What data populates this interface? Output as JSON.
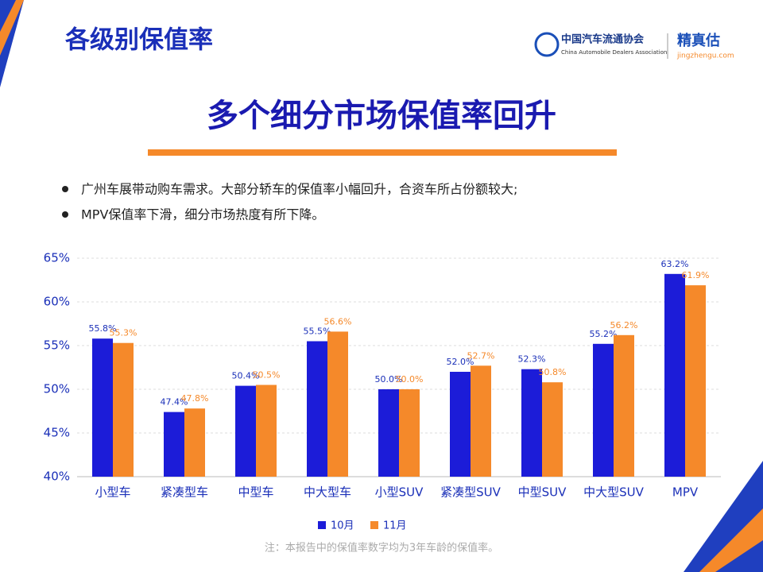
{
  "header": {
    "title": "各级别保值率",
    "logo_cn": "中国汽车流通协会",
    "logo_en": "China Automobile Dealers Association",
    "brand": "精真估",
    "brand_url": "jingzhengu.com"
  },
  "headline": "多个细分市场保值率回升",
  "bullets": [
    "广州车展带动购车需求。大部分轿车的保值率小幅回升，合资车所占份额较大;",
    "MPV保值率下滑，细分市场热度有所下降。"
  ],
  "footnote": "注：本报告中的保值率数字均为3年车龄的保值率。",
  "chart_data": {
    "type": "bar",
    "categories": [
      "小型车",
      "紧凑型车",
      "中型车",
      "中大型车",
      "小型SUV",
      "紧凑型SUV",
      "中型SUV",
      "中大型SUV",
      "MPV"
    ],
    "series": [
      {
        "name": "10月",
        "color": "#1c1cd8",
        "values": [
          55.8,
          47.4,
          50.4,
          55.5,
          50.0,
          52.0,
          52.3,
          55.2,
          63.2
        ],
        "value_labels": [
          "55.8%",
          "47.4%",
          "50.4%",
          "55.5%",
          "50.0%",
          "52.0%",
          "52.3%",
          "55.2%",
          "63.2%"
        ]
      },
      {
        "name": "11月",
        "color": "#f5892a",
        "values": [
          55.3,
          47.8,
          50.5,
          56.6,
          50.0,
          52.7,
          50.8,
          56.2,
          61.9
        ],
        "value_labels": [
          "55.3%",
          "47.8%",
          "50.5%",
          "56.6%",
          "50.0%",
          "52.7%",
          "50.8%",
          "56.2%",
          "61.9%"
        ]
      }
    ],
    "ylim": [
      40,
      65
    ],
    "yticks": [
      {
        "value": 40,
        "label": "40%"
      },
      {
        "value": 45,
        "label": "45%"
      },
      {
        "value": 50,
        "label": "50%"
      },
      {
        "value": 55,
        "label": "55%"
      },
      {
        "value": 60,
        "label": "60%"
      },
      {
        "value": 65,
        "label": "65%"
      }
    ],
    "grid": true,
    "legend": "bottom"
  }
}
